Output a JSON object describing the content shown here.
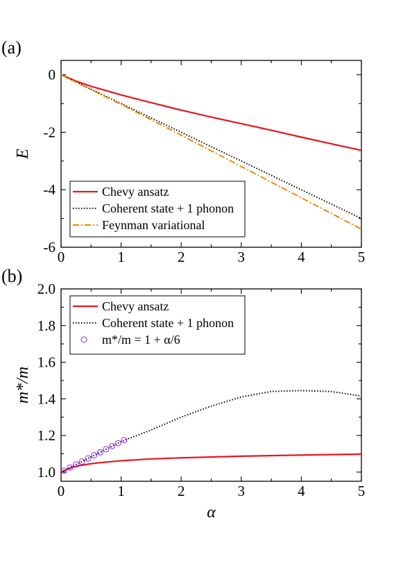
{
  "colors": {
    "chevy": "#e8141c",
    "coherent": "#000000",
    "feynman": "#f08a00",
    "formula": "#8a2be2"
  },
  "chart_data": [
    {
      "panel": "(a)",
      "type": "line",
      "xlabel": "",
      "ylabel": "E",
      "xlim": [
        0,
        5
      ],
      "ylim": [
        -6,
        0.5
      ],
      "xticks": [
        "0",
        "1",
        "2",
        "3",
        "4",
        "5"
      ],
      "yticks": [
        "0",
        "-2",
        "-4",
        "-6"
      ],
      "legend_position": "bottom-left",
      "series": [
        {
          "name": "Chevy ansatz",
          "style": "solid",
          "color": "#e8141c",
          "x": [
            0,
            0.25,
            0.5,
            1,
            1.5,
            2,
            2.5,
            3,
            3.5,
            4,
            4.5,
            5
          ],
          "y": [
            0,
            -0.22,
            -0.4,
            -0.7,
            -0.97,
            -1.23,
            -1.47,
            -1.7,
            -1.93,
            -2.17,
            -2.4,
            -2.63
          ]
        },
        {
          "name": "Coherent state + 1 phonon",
          "style": "dotted",
          "color": "#000000",
          "x": [
            0,
            1,
            2,
            3,
            4,
            5
          ],
          "y": [
            0,
            -1.0,
            -2.0,
            -3.0,
            -4.0,
            -5.0
          ]
        },
        {
          "name": "Feynman variational",
          "style": "dashdot",
          "color": "#f08a00",
          "x": [
            0,
            1,
            2,
            3,
            4,
            5
          ],
          "y": [
            0,
            -1.03,
            -2.1,
            -3.19,
            -4.28,
            -5.37
          ]
        }
      ]
    },
    {
      "panel": "(b)",
      "type": "line",
      "xlabel": "α",
      "ylabel": "m*/m",
      "xlim": [
        0,
        5
      ],
      "ylim": [
        0.95,
        2.0
      ],
      "xticks": [
        "0",
        "1",
        "2",
        "3",
        "4",
        "5"
      ],
      "yticks": [
        "1.0",
        "1.2",
        "1.4",
        "1.6",
        "1.8",
        "2.0"
      ],
      "legend_position": "top-left",
      "series": [
        {
          "name": "Chevy ansatz",
          "style": "solid",
          "color": "#e8141c",
          "x": [
            0,
            0.1,
            0.2,
            0.3,
            0.5,
            0.7,
            1,
            1.5,
            2,
            3,
            4,
            5
          ],
          "y": [
            1.0,
            1.015,
            1.027,
            1.035,
            1.046,
            1.053,
            1.062,
            1.072,
            1.078,
            1.087,
            1.093,
            1.098
          ]
        },
        {
          "name": "Coherent state + 1 phonon",
          "style": "dotted",
          "color": "#000000",
          "x": [
            0,
            0.5,
            1,
            1.5,
            2,
            2.5,
            3,
            3.5,
            4,
            4.5,
            5
          ],
          "y": [
            1.0,
            1.083,
            1.167,
            1.23,
            1.3,
            1.36,
            1.41,
            1.44,
            1.445,
            1.44,
            1.415
          ]
        },
        {
          "name": "m*/m = 1 + α/6",
          "style": "circles",
          "color": "#8a2be2",
          "x": [
            0.05,
            0.15,
            0.25,
            0.35,
            0.45,
            0.55,
            0.65,
            0.75,
            0.85,
            0.95,
            1.05
          ],
          "y": [
            1.008,
            1.025,
            1.042,
            1.058,
            1.075,
            1.092,
            1.108,
            1.125,
            1.142,
            1.158,
            1.175
          ]
        }
      ]
    }
  ]
}
